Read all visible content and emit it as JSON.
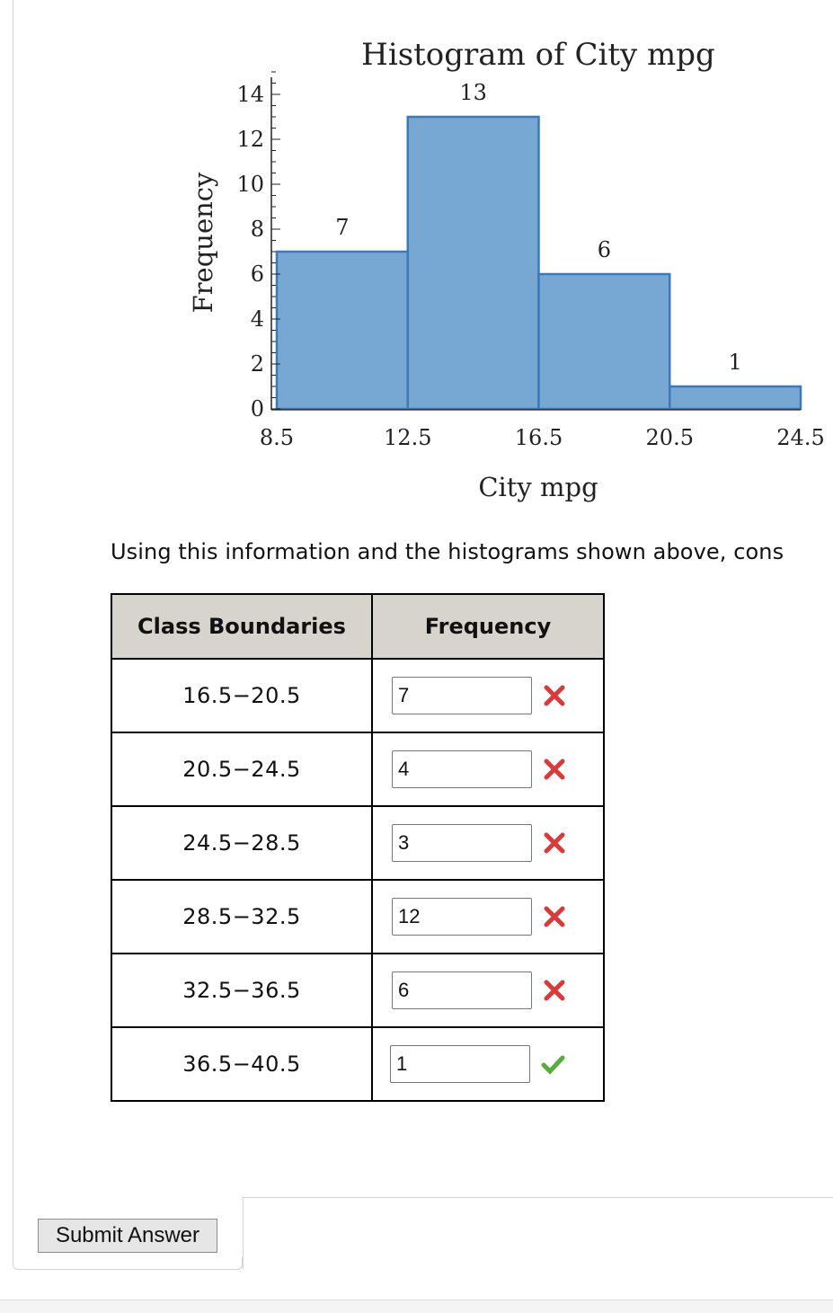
{
  "chart_data": {
    "type": "bar",
    "title": "Histogram of City mpg",
    "xlabel": "City mpg",
    "ylabel": "Frequency",
    "bin_edges": [
      8.5,
      12.5,
      16.5,
      20.5,
      24.5
    ],
    "x_tick_labels": [
      "8.5",
      "12.5",
      "16.5",
      "20.5",
      "24.5"
    ],
    "values": [
      7,
      13,
      6,
      1
    ],
    "data_labels": [
      "7",
      "13",
      "6",
      "1"
    ],
    "y_ticks": [
      0,
      2,
      4,
      6,
      8,
      10,
      12,
      14
    ],
    "y_tick_labels": [
      "0",
      "2",
      "4",
      "6",
      "8",
      "10",
      "12",
      "14"
    ],
    "ylim": [
      0,
      15
    ],
    "bar_color": "#77a8d3",
    "bar_edge_color": "#3d78b8"
  },
  "instruction": "Using this information and the histograms shown above, cons",
  "table": {
    "headers": [
      "Class Boundaries",
      "Frequency"
    ],
    "rows": [
      {
        "bounds": "16.5−20.5",
        "value": "7",
        "status": "incorrect"
      },
      {
        "bounds": "20.5−24.5",
        "value": "4",
        "status": "incorrect"
      },
      {
        "bounds": "24.5−28.5",
        "value": "3",
        "status": "incorrect"
      },
      {
        "bounds": "28.5−32.5",
        "value": "12",
        "status": "incorrect"
      },
      {
        "bounds": "32.5−36.5",
        "value": "6",
        "status": "incorrect"
      },
      {
        "bounds": "36.5−40.5",
        "value": "1",
        "status": "correct"
      }
    ]
  },
  "icons": {
    "incorrect": "cross-icon",
    "correct": "check-icon"
  },
  "status_colors": {
    "incorrect": "#d93a3a",
    "correct": "#5aaa3c"
  },
  "submit_label": "Submit Answer"
}
